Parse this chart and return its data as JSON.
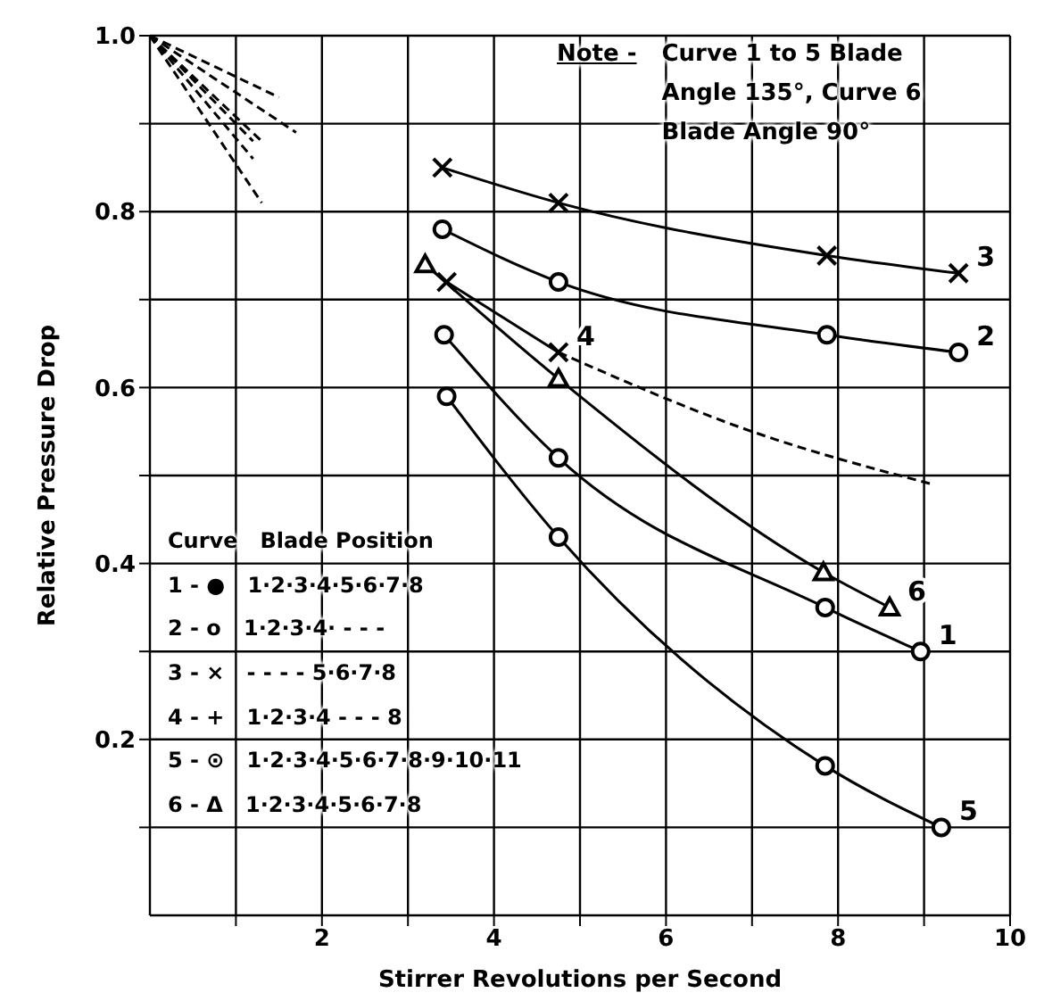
{
  "chart_data": {
    "type": "line",
    "xlabel": "Stirrer   Revolutions  per  Second",
    "ylabel": "Relative   Pressure   Drop",
    "xlim": [
      0,
      10
    ],
    "ylim": [
      0,
      1
    ],
    "xticks": [
      {
        "value": 1,
        "label": null
      },
      2,
      {
        "value": 3,
        "label": null
      },
      4,
      {
        "value": 5,
        "label": null
      },
      6,
      {
        "value": 7,
        "label": null
      },
      8,
      {
        "value": 9,
        "label": null
      },
      10
    ],
    "yticks": [
      {
        "value": 0.1,
        "label": null
      },
      0.2,
      {
        "value": 0.3,
        "label": null
      },
      0.4,
      {
        "value": 0.5,
        "label": null
      },
      0.6,
      {
        "value": 0.7,
        "label": null
      },
      0.8,
      {
        "value": 0.9,
        "label": null
      },
      {
        "value": 1,
        "label": "1.0"
      }
    ],
    "grid": true,
    "line_style": "solid",
    "annotations": [
      "Note -",
      "Curve 1 to 5 Blade Angle 135°, Curve 6 Blade Angle 90°",
      "Curve   Blade Position",
      "1 - ●   1·2·3·4·5·6·7·8",
      "2 - o   1·2·3·4· - - -",
      "3 - ×   - - - - 5·6·7·8",
      "4 - +   1·2·3·4 - - - 8",
      "5 - ⊙   1·2·3·4·5·6·7·8·9·10·11",
      "6 - Δ   1·2·3·4·5·6·7·8"
    ],
    "series": [
      {
        "name": "3",
        "color": "#000000",
        "marker": "cross",
        "x": [
          3.4,
          4.75,
          7.87,
          9.4
        ],
        "values": [
          0.85,
          0.81,
          0.75,
          0.73
        ]
      },
      {
        "name": "2",
        "color": "#000000",
        "marker": "circle",
        "x": [
          3.4,
          4.75,
          7.87,
          9.4
        ],
        "values": [
          0.78,
          0.72,
          0.66,
          0.64
        ]
      },
      {
        "name": "6",
        "color": "#000000",
        "marker": "triangle",
        "x": [
          3.2,
          4.75,
          7.83,
          8.6
        ],
        "values": [
          0.74,
          0.61,
          0.39,
          0.35
        ]
      },
      {
        "name": "1",
        "color": "#000000",
        "marker": "circle",
        "x": [
          3.42,
          4.75,
          7.85,
          8.96
        ],
        "values": [
          0.66,
          0.52,
          0.35,
          0.3
        ]
      },
      {
        "name": "5",
        "color": "#000000",
        "marker": "circle",
        "x": [
          3.45,
          4.75,
          7.85,
          9.2
        ],
        "values": [
          0.59,
          0.43,
          0.17,
          0.1
        ]
      },
      {
        "type": "line",
        "color": "#000000",
        "marker": "none",
        "line_style": "dashed",
        "x": [
          4.75,
          7.0,
          9.1
        ],
        "values": [
          0.64,
          0.55,
          0.49
        ]
      },
      {
        "name": "4",
        "color": "#000000",
        "marker": "cross",
        "x": [
          3.45,
          4.75
        ],
        "values": [
          0.72,
          0.64
        ]
      },
      {
        "type": "line",
        "color": "#000000",
        "marker": "none",
        "line_style": "dashed",
        "x": [
          0,
          1.5
        ],
        "values": [
          1,
          0.93
        ]
      },
      {
        "type": "line",
        "color": "#000000",
        "marker": "none",
        "line_style": "dashed",
        "x": [
          0,
          1.7
        ],
        "values": [
          1,
          0.89
        ]
      },
      {
        "type": "line",
        "color": "#000000",
        "marker": "none",
        "line_style": "dashed",
        "x": [
          0,
          1.3
        ],
        "values": [
          1,
          0.88
        ]
      },
      {
        "type": "line",
        "color": "#000000",
        "marker": "none",
        "line_style": "dashed",
        "x": [
          0,
          1.2
        ],
        "values": [
          1,
          0.88
        ]
      },
      {
        "type": "line",
        "color": "#000000",
        "marker": "none",
        "line_style": "dashed",
        "x": [
          0,
          1.2
        ],
        "values": [
          1,
          0.86
        ]
      },
      {
        "type": "line",
        "color": "#000000",
        "marker": "none",
        "line_style": "dashed",
        "x": [
          0,
          1.3
        ],
        "values": [
          1,
          0.81
        ]
      }
    ]
  }
}
